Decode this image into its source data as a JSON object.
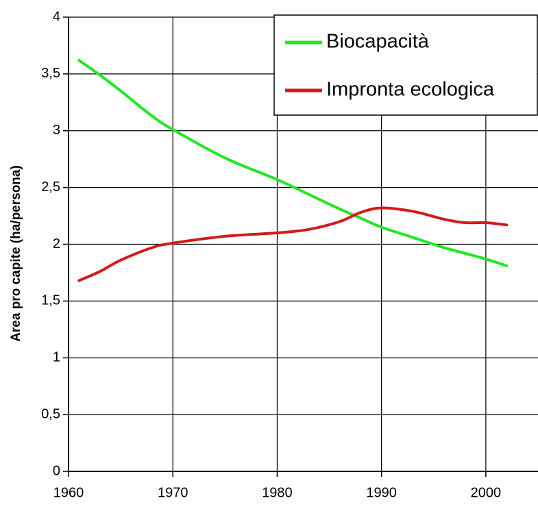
{
  "chart_data": {
    "type": "line",
    "y_label": "Area pro capite (ha/persona)",
    "x": [
      1961,
      1963,
      1965,
      1968,
      1970,
      1975,
      1980,
      1983,
      1986,
      1988,
      1990,
      1993,
      1996,
      1998,
      2000,
      2002
    ],
    "series": [
      {
        "name": "Biocapacità",
        "color": "#22e622",
        "values": [
          3.62,
          3.49,
          3.35,
          3.13,
          3.01,
          2.76,
          2.57,
          2.44,
          2.31,
          2.23,
          2.15,
          2.06,
          1.97,
          1.92,
          1.87,
          1.81
        ]
      },
      {
        "name": "Impronta ecologica",
        "color": "#d41a1a",
        "values": [
          1.68,
          1.76,
          1.86,
          1.97,
          2.01,
          2.07,
          2.1,
          2.13,
          2.2,
          2.28,
          2.32,
          2.29,
          2.22,
          2.19,
          2.19,
          2.17
        ]
      }
    ],
    "xlim": [
      1960,
      2005
    ],
    "xticks": [
      1960,
      1970,
      1980,
      1990,
      2000
    ],
    "ylim": [
      0,
      4
    ],
    "yticks": [
      0,
      {
        "value": 0.5,
        "label": "0,5"
      },
      1,
      {
        "value": 1.5,
        "label": "1,5"
      },
      2,
      {
        "value": 2.5,
        "label": "2,5"
      },
      3,
      {
        "value": 3.5,
        "label": "3,5"
      },
      4
    ],
    "grid": true,
    "legend": "top-right"
  }
}
